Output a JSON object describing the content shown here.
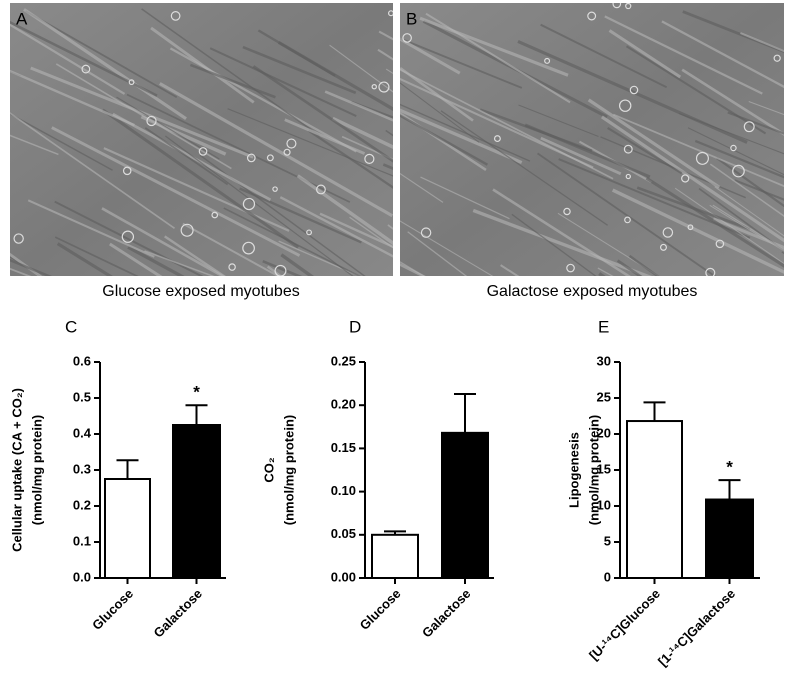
{
  "panels": [
    {
      "letter": "A",
      "caption": "Glucose exposed myotubes"
    },
    {
      "letter": "B",
      "caption": "Galactose exposed myotubes"
    }
  ],
  "chart_data": [
    {
      "type": "bar",
      "letter": "C",
      "ylabel": [
        "Cellular uptake (CA + CO₂)",
        "(nmol/mg protein)"
      ],
      "categories": [
        "Glucose",
        "Galactose"
      ],
      "values": [
        0.275,
        0.425
      ],
      "errors": [
        0.052,
        0.055
      ],
      "colors": [
        "#ffffff",
        "#000000"
      ],
      "annotations": [
        null,
        "*"
      ],
      "ylim": [
        0,
        0.6
      ],
      "yticks": [
        {
          "value": 0,
          "label": "0.0"
        },
        0.1,
        0.2,
        0.3,
        0.4,
        0.5,
        0.6
      ]
    },
    {
      "type": "bar",
      "letter": "D",
      "ylabel": [
        "CO₂",
        "(nmol/mg protein)"
      ],
      "categories": [
        "Glucose",
        "Galactose"
      ],
      "values": [
        0.05,
        0.168
      ],
      "errors": [
        0.004,
        0.045
      ],
      "colors": [
        "#ffffff",
        "#000000"
      ],
      "annotations": [
        null,
        null
      ],
      "ylim": [
        0,
        0.25
      ],
      "yticks": [
        {
          "value": 0,
          "label": "0.00"
        },
        0.05,
        {
          "value": 0.1,
          "label": "0.10"
        },
        0.15,
        {
          "value": 0.2,
          "label": "0.20"
        },
        0.25
      ]
    },
    {
      "type": "bar",
      "letter": "E",
      "ylabel": [
        "Lipogenesis",
        "(nmol/mg protein)"
      ],
      "categories": [
        "[U-¹⁴C]Glucose",
        "[1-¹⁴C]Galactose"
      ],
      "values": [
        21.8,
        10.9
      ],
      "errors": [
        2.6,
        2.7
      ],
      "colors": [
        "#ffffff",
        "#000000"
      ],
      "annotations": [
        null,
        "*"
      ],
      "ylim": [
        0,
        30
      ],
      "yticks": [
        0,
        5,
        10,
        15,
        20,
        25,
        30
      ]
    }
  ]
}
